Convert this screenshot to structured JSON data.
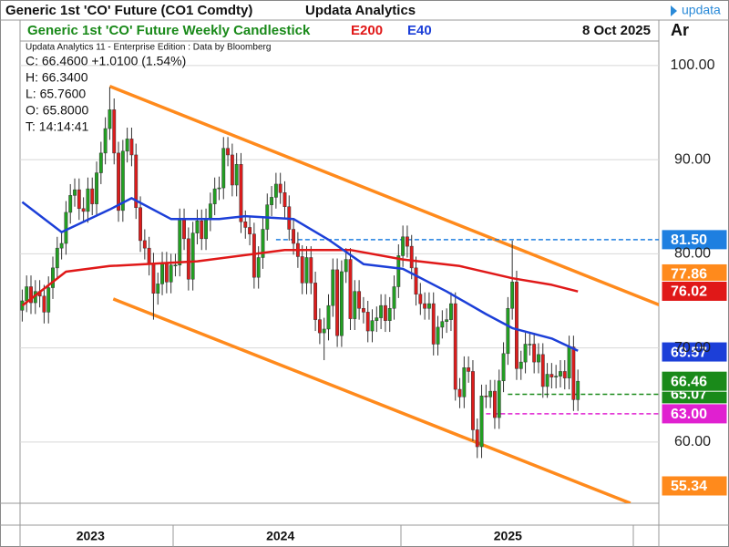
{
  "chart_data": {
    "type": "candlestick",
    "title": "Generic 1st 'CO' Future (CO1 Comdty)",
    "publisher": "Updata Analytics",
    "logo": "updata",
    "subtitle": "Generic 1st 'CO' Future Weekly Candlestick",
    "date": "8 Oct 2025",
    "axis_header": "Ar",
    "info": [
      "Updata Analytics 11 - Enterprise Edition : Data by Bloomberg",
      "C: 66.4600  +1.0100 (1.54%)",
      "H: 66.3400",
      "L: 65.7600",
      "O: 65.8000",
      "T: 14:14:41"
    ],
    "up_color": "#22a022",
    "down_color": "#dd1c1c",
    "open": [
      74.0,
      75.0,
      76.5,
      74.8,
      76.0,
      75.5,
      73.8,
      76.4,
      78.5,
      80.6,
      81.1,
      84.4,
      86.2,
      86.8,
      84.8,
      84.5,
      86.9,
      85.3,
      88.6,
      90.7,
      93.3,
      95.3,
      90.7,
      84.6,
      90.9,
      92.2,
      90.5,
      84.9,
      81.4,
      80.6,
      78.9,
      75.8,
      76.8,
      79.0,
      77.0,
      78.8,
      78.8,
      83.6,
      81.6,
      77.3,
      82.2,
      83.5,
      81.6,
      83.6,
      85.3,
      86.9,
      87.0,
      91.2,
      90.5,
      87.3,
      89.5,
      83.4,
      82.8,
      82.1,
      77.5,
      79.6,
      82.6,
      85.2,
      86.0,
      87.4,
      86.5,
      85.0,
      82.6,
      81.1,
      79.7,
      76.9,
      79.6,
      76.9,
      73.0,
      71.6,
      72.0,
      74.5,
      78.3,
      71.3,
      78.1,
      79.4,
      73.1,
      76.0,
      74.2,
      73.8,
      71.8,
      72.9,
      73.2,
      74.5,
      72.9,
      74.2,
      76.5,
      79.8,
      81.8,
      80.8,
      78.5,
      75.7,
      74.7,
      74.2,
      74.7,
      70.4,
      72.2,
      72.8,
      73.0,
      74.7,
      65.6,
      64.8,
      67.9,
      67.5,
      61.3,
      59.5,
      64.9,
      64.8,
      65.4,
      62.6,
      66.5,
      69.4,
      74.2,
      77.0,
      67.8,
      68.5,
      70.4,
      70.4,
      68.5,
      69.3,
      65.9,
      67.2,
      66.9,
      67.0,
      67.5,
      66.8,
      70.1,
      64.5
    ],
    "high": [
      76.2,
      77.7,
      77.7,
      77.2,
      77.2,
      76.7,
      77.6,
      79.7,
      81.8,
      82.3,
      85.6,
      87.4,
      88.0,
      88.0,
      86.0,
      88.1,
      88.1,
      89.8,
      91.9,
      94.5,
      97.7,
      96.5,
      91.9,
      92.1,
      93.4,
      93.4,
      91.7,
      86.1,
      82.6,
      81.8,
      80.1,
      78.0,
      80.2,
      80.2,
      80.0,
      80.0,
      84.8,
      84.8,
      82.8,
      83.4,
      84.7,
      84.7,
      84.8,
      86.5,
      88.1,
      88.2,
      92.4,
      92.4,
      91.7,
      90.7,
      90.7,
      84.6,
      84.0,
      83.3,
      80.8,
      83.8,
      86.4,
      87.2,
      88.6,
      88.6,
      87.7,
      86.2,
      83.8,
      82.3,
      80.9,
      80.8,
      80.8,
      78.1,
      74.2,
      73.2,
      75.7,
      79.5,
      79.5,
      79.3,
      80.6,
      80.6,
      77.2,
      77.2,
      75.4,
      75.0,
      74.1,
      74.4,
      75.7,
      75.7,
      75.4,
      77.7,
      81.0,
      83.0,
      83.0,
      82.0,
      79.7,
      76.9,
      75.9,
      75.9,
      75.9,
      73.4,
      74.0,
      74.2,
      75.9,
      75.9,
      66.8,
      69.1,
      69.1,
      68.7,
      62.5,
      66.1,
      66.1,
      66.6,
      66.6,
      67.7,
      70.6,
      75.4,
      81.4,
      78.2,
      69.7,
      71.6,
      71.6,
      71.6,
      70.5,
      70.5,
      68.4,
      68.4,
      68.2,
      68.7,
      68.7,
      71.3,
      71.3,
      67.7
    ],
    "low": [
      72.8,
      73.8,
      73.6,
      73.6,
      74.3,
      72.6,
      72.6,
      75.2,
      77.3,
      79.4,
      79.9,
      83.2,
      85.0,
      83.6,
      83.3,
      83.3,
      84.1,
      84.1,
      87.4,
      89.5,
      92.1,
      89.5,
      83.4,
      83.4,
      89.7,
      89.3,
      83.7,
      80.2,
      79.4,
      77.7,
      73.0,
      74.6,
      75.6,
      75.8,
      75.8,
      77.6,
      77.6,
      80.4,
      76.1,
      76.1,
      81.0,
      80.4,
      80.4,
      82.4,
      84.1,
      85.7,
      85.8,
      89.3,
      86.1,
      86.1,
      82.2,
      81.6,
      80.9,
      76.3,
      76.3,
      78.4,
      81.4,
      84.0,
      84.8,
      85.3,
      83.8,
      81.4,
      79.9,
      78.5,
      75.7,
      75.7,
      75.7,
      71.8,
      70.4,
      68.7,
      70.8,
      73.3,
      70.1,
      70.1,
      76.9,
      71.9,
      71.9,
      73.0,
      72.6,
      70.6,
      70.6,
      71.7,
      72.0,
      71.7,
      71.7,
      73.0,
      75.3,
      78.6,
      79.6,
      77.3,
      74.5,
      73.5,
      73.0,
      73.0,
      69.2,
      69.2,
      71.0,
      71.6,
      71.8,
      64.4,
      63.6,
      63.6,
      66.3,
      60.1,
      58.3,
      58.3,
      63.6,
      63.6,
      61.4,
      61.4,
      65.3,
      68.2,
      73.0,
      66.6,
      66.6,
      67.3,
      69.2,
      67.3,
      67.3,
      64.7,
      64.7,
      65.7,
      65.7,
      65.8,
      65.6,
      65.6,
      63.3,
      63.3
    ],
    "close": [
      75.0,
      76.5,
      74.8,
      76.0,
      75.5,
      73.8,
      76.4,
      78.5,
      80.6,
      81.1,
      84.4,
      86.2,
      86.8,
      84.8,
      84.5,
      86.9,
      85.3,
      88.6,
      90.7,
      93.3,
      95.3,
      90.7,
      84.6,
      90.9,
      92.2,
      90.5,
      84.9,
      81.4,
      80.6,
      78.9,
      75.8,
      76.8,
      79.0,
      77.0,
      78.8,
      78.8,
      83.6,
      81.6,
      77.3,
      82.2,
      83.5,
      81.6,
      83.6,
      85.3,
      86.9,
      87.0,
      91.2,
      90.5,
      87.3,
      89.5,
      83.4,
      82.8,
      82.1,
      77.5,
      79.6,
      82.6,
      85.2,
      86.0,
      87.4,
      86.5,
      85.0,
      82.6,
      81.1,
      79.7,
      76.9,
      79.6,
      76.9,
      73.0,
      71.6,
      72.0,
      74.5,
      78.3,
      71.3,
      78.1,
      79.4,
      73.1,
      76.0,
      74.2,
      73.8,
      71.8,
      72.9,
      73.2,
      74.5,
      72.9,
      74.2,
      76.5,
      79.8,
      81.8,
      80.8,
      78.5,
      75.7,
      74.7,
      74.2,
      74.7,
      70.4,
      72.2,
      72.8,
      73.0,
      74.7,
      65.6,
      64.8,
      67.9,
      67.5,
      61.3,
      59.5,
      64.9,
      64.8,
      65.4,
      62.6,
      66.5,
      69.4,
      74.2,
      77.0,
      67.8,
      68.5,
      70.4,
      70.4,
      68.5,
      69.3,
      65.9,
      67.2,
      66.9,
      67.0,
      67.5,
      66.8,
      70.1,
      64.5,
      66.46
    ],
    "series": [
      {
        "name": "E200",
        "color": "#e01818",
        "x": [
          0,
          10,
          20,
          40,
          60,
          75,
          87,
          100,
          112,
          121,
          127
        ],
        "values": [
          74.5,
          78.1,
          78.7,
          79.2,
          80.4,
          80.4,
          79.4,
          78.7,
          77.4,
          76.7,
          76.0
        ]
      },
      {
        "name": "E40",
        "color": "#1c3fd8",
        "x": [
          0,
          9,
          20,
          25,
          34,
          45,
          51,
          62,
          70,
          78,
          87,
          97,
          106,
          112,
          121,
          127
        ],
        "values": [
          85.5,
          82.3,
          84.7,
          85.9,
          83.7,
          83.7,
          84.0,
          83.7,
          81.5,
          78.9,
          78.4,
          76.0,
          73.6,
          72.1,
          71.0,
          69.7
        ]
      }
    ],
    "channel": {
      "color": "#ff8a1c",
      "lines": [
        {
          "x": [
            20,
            146
          ],
          "values": [
            97.8,
            74.5
          ]
        },
        {
          "x": [
            20.8,
            139
          ],
          "values": [
            75.2,
            53.5
          ]
        }
      ]
    },
    "levels": [
      {
        "value": 81.5,
        "x_start": 58,
        "color": "#1e7fe0"
      },
      {
        "value": 65.07,
        "x_start": 111,
        "color": "#1a8a1a"
      },
      {
        "value": 63.0,
        "x_start": 106,
        "color": "#e020d0"
      }
    ],
    "price_labels": [
      {
        "value": 81.5,
        "label": "81.50",
        "color": "#1e7fe0"
      },
      {
        "value": 77.86,
        "label": "77.86",
        "color": "#ff8a1c"
      },
      {
        "value": 76.02,
        "label": "76.02",
        "color": "#e01818"
      },
      {
        "value": 69.57,
        "label": "69.57",
        "color": "#1c3fd8"
      },
      {
        "value": 65.07,
        "label": "65.07",
        "color": "#1a8a1a"
      },
      {
        "value": 66.46,
        "label": "66.46",
        "color": "#1a8a1a"
      },
      {
        "value": 63.0,
        "label": "63.00",
        "color": "#e020d0"
      },
      {
        "value": 55.34,
        "label": "55.34",
        "color": "#ff8a1c"
      }
    ],
    "ylim": [
      53.5,
      102.6
    ],
    "yticks": [
      {
        "value": 100,
        "label": "100.00"
      },
      {
        "value": 90,
        "label": "90.00"
      },
      {
        "value": 80,
        "label": "80.00"
      },
      {
        "value": 70,
        "label": "70.00"
      },
      {
        "value": 60,
        "label": "60.00"
      }
    ],
    "xlim": [
      -0.5,
      145.5
    ],
    "xticks": [
      {
        "value": 15.6,
        "label": "2023"
      },
      {
        "value": 59,
        "label": "2024"
      },
      {
        "value": 111,
        "label": "2025"
      }
    ],
    "grid": true
  }
}
